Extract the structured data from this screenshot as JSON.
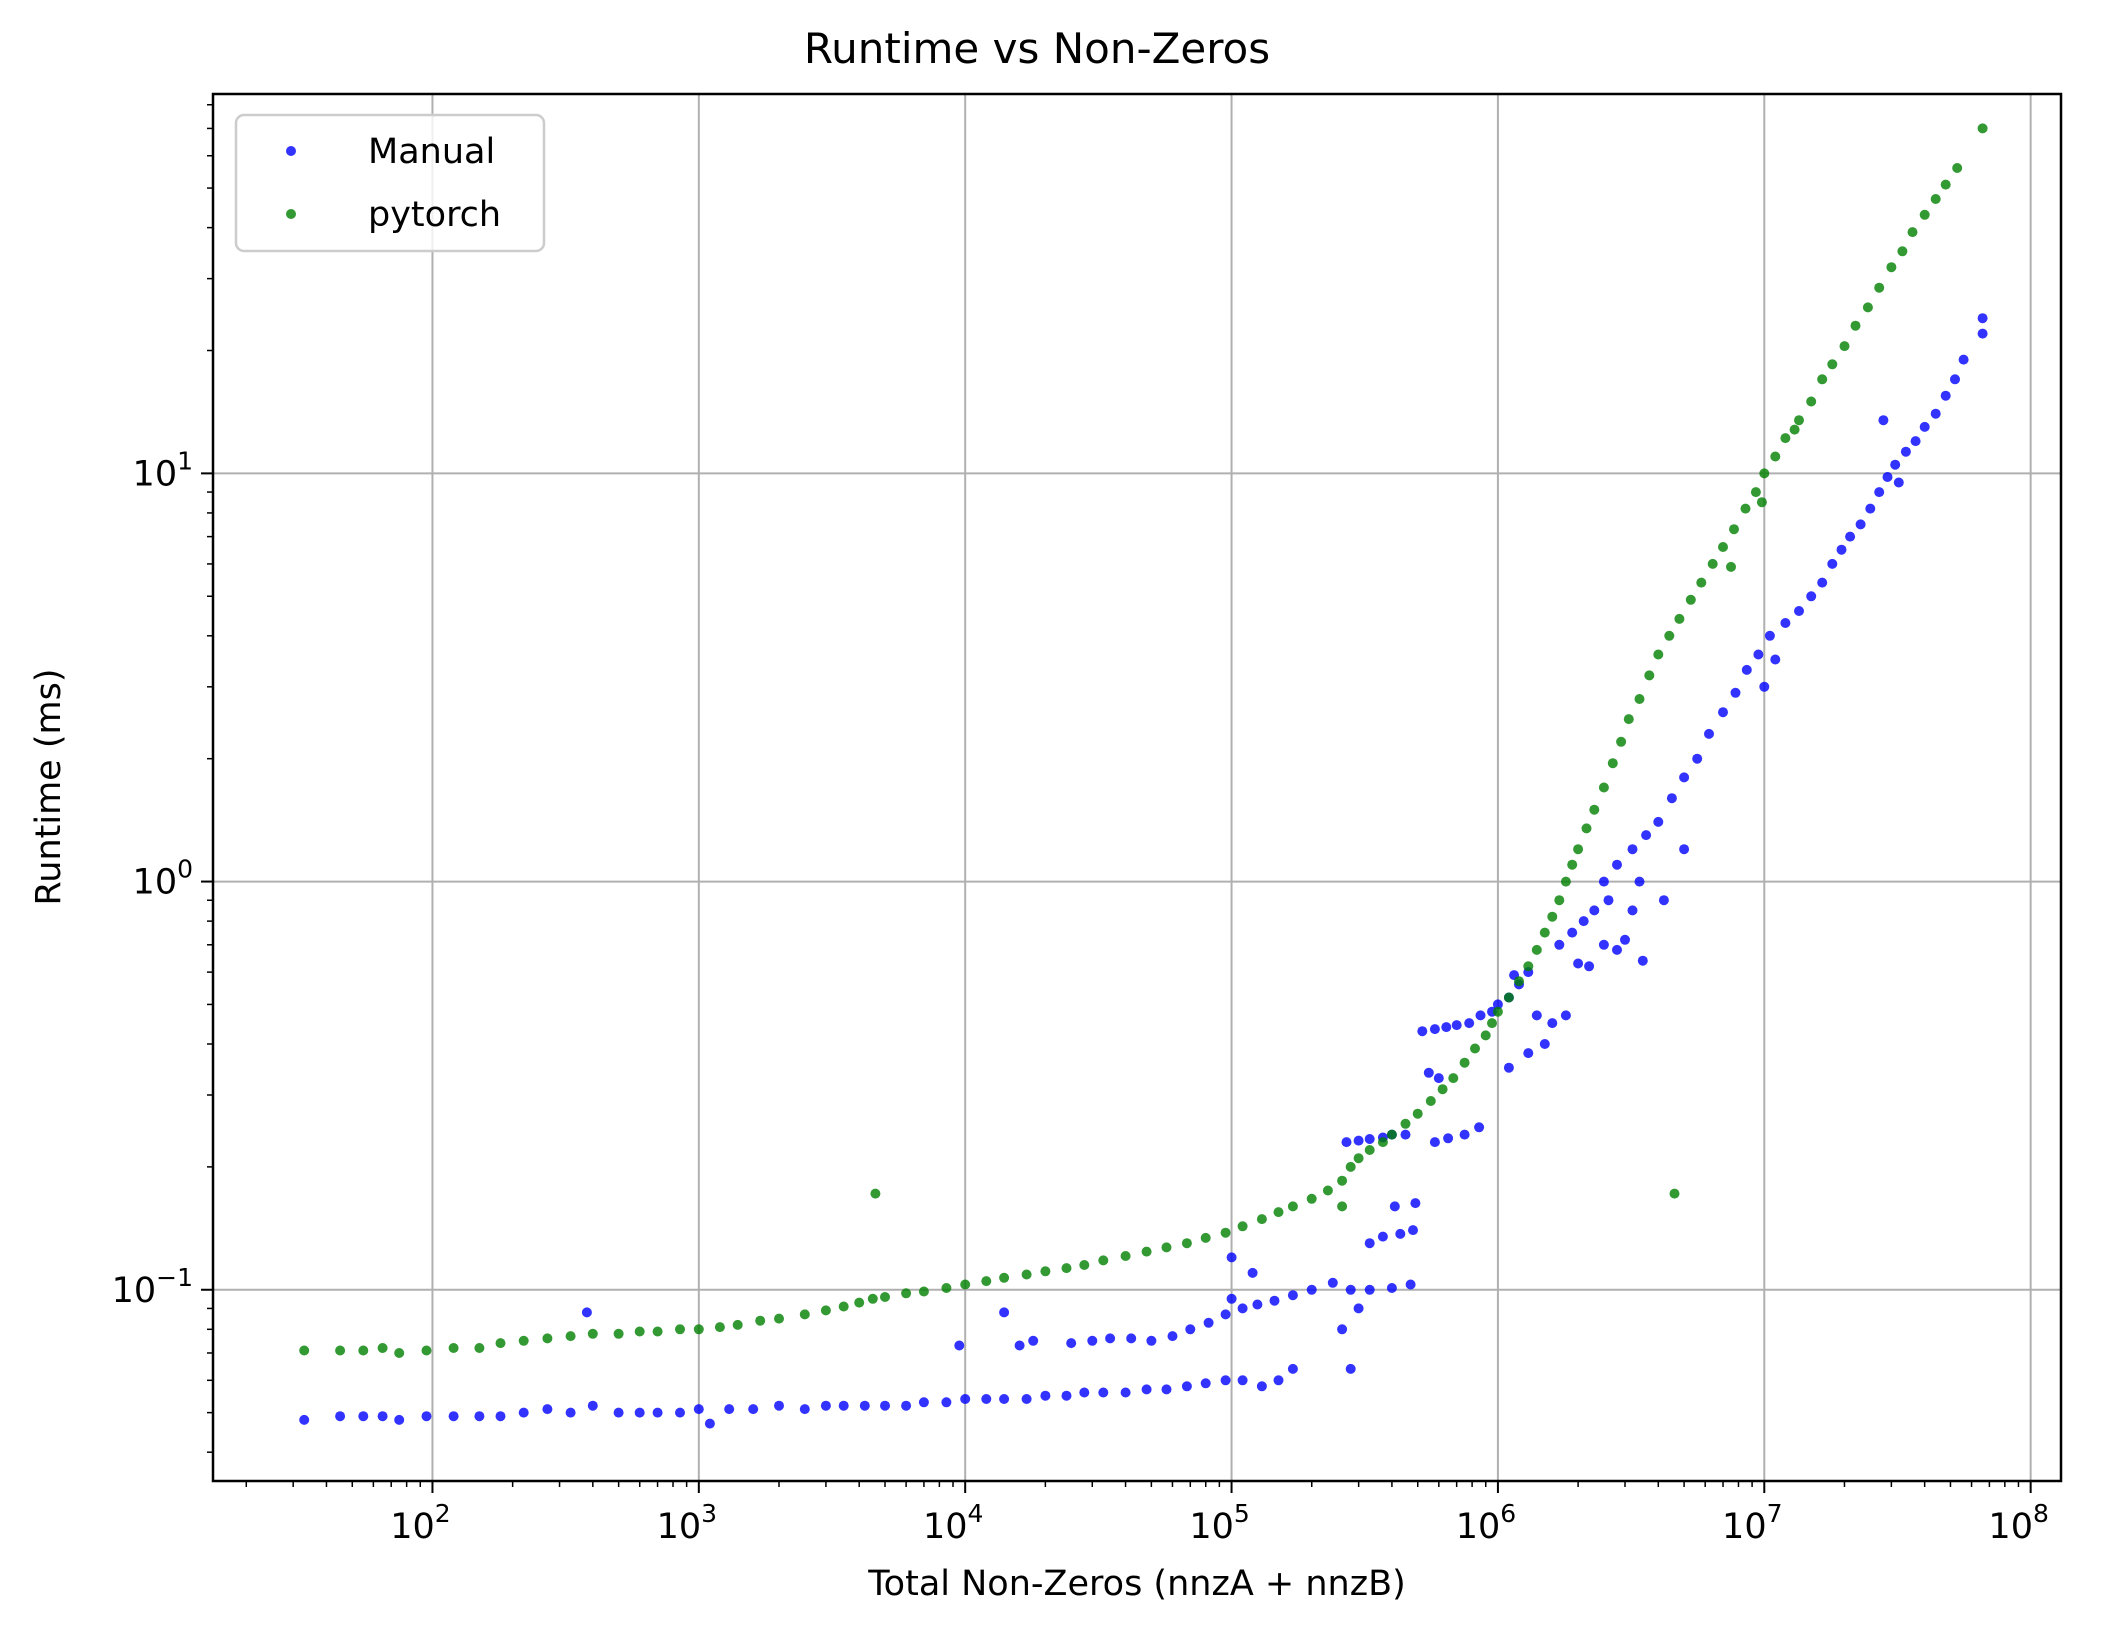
{
  "chart_data": {
    "type": "scatter",
    "title": "Runtime vs Non-Zeros",
    "xlabel": "Total Non-Zeros (nnzA + nnzB)",
    "ylabel": "Runtime (ms)",
    "xscale": "log",
    "yscale": "log",
    "xlim": [
      15,
      130000000
    ],
    "ylim": [
      0.034,
      85
    ],
    "grid": true,
    "legend_position": "upper-left",
    "x_ticks": [
      {
        "base": "10",
        "exp": "2",
        "value": 100
      },
      {
        "base": "10",
        "exp": "3",
        "value": 1000
      },
      {
        "base": "10",
        "exp": "4",
        "value": 10000
      },
      {
        "base": "10",
        "exp": "5",
        "value": 100000
      },
      {
        "base": "10",
        "exp": "6",
        "value": 1000000
      },
      {
        "base": "10",
        "exp": "7",
        "value": 10000000
      },
      {
        "base": "10",
        "exp": "8",
        "value": 100000000
      }
    ],
    "y_ticks": [
      {
        "base": "10",
        "exp": "−1",
        "value": 0.1
      },
      {
        "base": "10",
        "exp": "0",
        "value": 1
      },
      {
        "base": "10",
        "exp": "1",
        "value": 10
      }
    ],
    "series": [
      {
        "name": "Manual",
        "color": "#0000ff",
        "points": [
          [
            33,
            0.048
          ],
          [
            45,
            0.049
          ],
          [
            55,
            0.049
          ],
          [
            65,
            0.049
          ],
          [
            75,
            0.048
          ],
          [
            95,
            0.049
          ],
          [
            120,
            0.049
          ],
          [
            150,
            0.049
          ],
          [
            180,
            0.049
          ],
          [
            220,
            0.05
          ],
          [
            270,
            0.051
          ],
          [
            330,
            0.05
          ],
          [
            400,
            0.052
          ],
          [
            380,
            0.088
          ],
          [
            500,
            0.05
          ],
          [
            600,
            0.05
          ],
          [
            700,
            0.05
          ],
          [
            850,
            0.05
          ],
          [
            1000,
            0.051
          ],
          [
            1100,
            0.047
          ],
          [
            1300,
            0.051
          ],
          [
            1600,
            0.051
          ],
          [
            2000,
            0.052
          ],
          [
            2500,
            0.051
          ],
          [
            3000,
            0.052
          ],
          [
            3500,
            0.052
          ],
          [
            4200,
            0.052
          ],
          [
            5000,
            0.052
          ],
          [
            6000,
            0.052
          ],
          [
            7000,
            0.053
          ],
          [
            8500,
            0.053
          ],
          [
            10000,
            0.054
          ],
          [
            12000,
            0.054
          ],
          [
            14000,
            0.054
          ],
          [
            17000,
            0.054
          ],
          [
            20000,
            0.055
          ],
          [
            24000,
            0.055
          ],
          [
            28000,
            0.056
          ],
          [
            33000,
            0.056
          ],
          [
            40000,
            0.056
          ],
          [
            48000,
            0.057
          ],
          [
            57000,
            0.057
          ],
          [
            68000,
            0.058
          ],
          [
            80000,
            0.059
          ],
          [
            95000,
            0.06
          ],
          [
            110000,
            0.06
          ],
          [
            130000,
            0.058
          ],
          [
            150000,
            0.06
          ],
          [
            170000,
            0.064
          ],
          [
            9500,
            0.073
          ],
          [
            16000,
            0.073
          ],
          [
            18000,
            0.075
          ],
          [
            25000,
            0.074
          ],
          [
            30000,
            0.075
          ],
          [
            35000,
            0.076
          ],
          [
            42000,
            0.076
          ],
          [
            50000,
            0.075
          ],
          [
            60000,
            0.077
          ],
          [
            70000,
            0.08
          ],
          [
            82000,
            0.083
          ],
          [
            95000,
            0.087
          ],
          [
            100000,
            0.095
          ],
          [
            110000,
            0.09
          ],
          [
            125000,
            0.092
          ],
          [
            145000,
            0.094
          ],
          [
            170000,
            0.097
          ],
          [
            200000,
            0.1
          ],
          [
            240000,
            0.104
          ],
          [
            280000,
            0.1
          ],
          [
            330000,
            0.1
          ],
          [
            400000,
            0.101
          ],
          [
            470000,
            0.103
          ],
          [
            14000,
            0.088
          ],
          [
            100000,
            0.12
          ],
          [
            120000,
            0.11
          ],
          [
            280000,
            0.064
          ],
          [
            260000,
            0.08
          ],
          [
            300000,
            0.09
          ],
          [
            330000,
            0.13
          ],
          [
            370000,
            0.135
          ],
          [
            430000,
            0.137
          ],
          [
            480000,
            0.14
          ],
          [
            410000,
            0.16
          ],
          [
            490000,
            0.163
          ],
          [
            270000,
            0.23
          ],
          [
            300000,
            0.232
          ],
          [
            330000,
            0.234
          ],
          [
            370000,
            0.236
          ],
          [
            400000,
            0.24
          ],
          [
            450000,
            0.24
          ],
          [
            580000,
            0.23
          ],
          [
            650000,
            0.235
          ],
          [
            750000,
            0.24
          ],
          [
            850000,
            0.25
          ],
          [
            550000,
            0.34
          ],
          [
            600000,
            0.33
          ],
          [
            520000,
            0.43
          ],
          [
            580000,
            0.435
          ],
          [
            640000,
            0.44
          ],
          [
            700000,
            0.445
          ],
          [
            780000,
            0.45
          ],
          [
            860000,
            0.47
          ],
          [
            950000,
            0.48
          ],
          [
            1000000,
            0.5
          ],
          [
            1100000,
            0.52
          ],
          [
            1150000,
            0.59
          ],
          [
            1200000,
            0.56
          ],
          [
            1300000,
            0.6
          ],
          [
            1400000,
            0.47
          ],
          [
            1600000,
            0.45
          ],
          [
            1800000,
            0.47
          ],
          [
            1100000,
            0.35
          ],
          [
            1300000,
            0.38
          ],
          [
            1500000,
            0.4
          ],
          [
            1700000,
            0.7
          ],
          [
            1900000,
            0.75
          ],
          [
            2100000,
            0.8
          ],
          [
            2300000,
            0.85
          ],
          [
            2600000,
            0.9
          ],
          [
            2000000,
            0.63
          ],
          [
            2200000,
            0.62
          ],
          [
            2500000,
            0.7
          ],
          [
            2800000,
            0.68
          ],
          [
            3200000,
            0.85
          ],
          [
            3000000,
            0.72
          ],
          [
            3500000,
            0.64
          ],
          [
            2500000,
            1.0
          ],
          [
            2800000,
            1.1
          ],
          [
            3200000,
            1.2
          ],
          [
            3600000,
            1.3
          ],
          [
            4000000,
            1.4
          ],
          [
            4500000,
            1.6
          ],
          [
            5000000,
            1.8
          ],
          [
            5600000,
            2.0
          ],
          [
            6200000,
            2.3
          ],
          [
            7000000,
            2.6
          ],
          [
            7800000,
            2.9
          ],
          [
            8600000,
            3.3
          ],
          [
            9500000,
            3.6
          ],
          [
            10000000,
            3.0
          ],
          [
            10500000,
            4.0
          ],
          [
            11000000,
            3.5
          ],
          [
            12000000,
            4.3
          ],
          [
            13500000,
            4.6
          ],
          [
            15000000,
            5.0
          ],
          [
            16500000,
            5.4
          ],
          [
            18000000,
            6.0
          ],
          [
            19500000,
            6.5
          ],
          [
            21000000,
            7.0
          ],
          [
            23000000,
            7.5
          ],
          [
            25000000,
            8.2
          ],
          [
            27000000,
            9.0
          ],
          [
            29000000,
            9.8
          ],
          [
            31000000,
            10.5
          ],
          [
            34000000,
            11.3
          ],
          [
            37000000,
            12.0
          ],
          [
            40000000,
            13.0
          ],
          [
            44000000,
            14.0
          ],
          [
            48000000,
            15.5
          ],
          [
            52000000,
            17.0
          ],
          [
            56000000,
            19.0
          ],
          [
            66000000,
            22.0
          ],
          [
            66000000,
            24.0
          ],
          [
            28000000,
            13.5
          ],
          [
            32000000,
            9.5
          ],
          [
            5000000,
            1.2
          ],
          [
            4200000,
            0.9
          ],
          [
            3400000,
            1.0
          ]
        ]
      },
      {
        "name": "pytorch",
        "color": "#008000",
        "points": [
          [
            33,
            0.071
          ],
          [
            45,
            0.071
          ],
          [
            55,
            0.071
          ],
          [
            65,
            0.072
          ],
          [
            75,
            0.07
          ],
          [
            95,
            0.071
          ],
          [
            120,
            0.072
          ],
          [
            150,
            0.072
          ],
          [
            180,
            0.074
          ],
          [
            220,
            0.075
          ],
          [
            270,
            0.076
          ],
          [
            330,
            0.077
          ],
          [
            400,
            0.078
          ],
          [
            500,
            0.078
          ],
          [
            600,
            0.079
          ],
          [
            700,
            0.079
          ],
          [
            850,
            0.08
          ],
          [
            1000,
            0.08
          ],
          [
            1200,
            0.081
          ],
          [
            1400,
            0.082
          ],
          [
            1700,
            0.084
          ],
          [
            2000,
            0.085
          ],
          [
            2500,
            0.087
          ],
          [
            3000,
            0.089
          ],
          [
            3500,
            0.091
          ],
          [
            4000,
            0.093
          ],
          [
            4500,
            0.095
          ],
          [
            4600,
            0.172
          ],
          [
            5000,
            0.096
          ],
          [
            6000,
            0.098
          ],
          [
            7000,
            0.099
          ],
          [
            8500,
            0.101
          ],
          [
            10000,
            0.103
          ],
          [
            12000,
            0.105
          ],
          [
            14000,
            0.107
          ],
          [
            17000,
            0.109
          ],
          [
            20000,
            0.111
          ],
          [
            24000,
            0.113
          ],
          [
            28000,
            0.115
          ],
          [
            33000,
            0.118
          ],
          [
            40000,
            0.121
          ],
          [
            48000,
            0.124
          ],
          [
            57000,
            0.127
          ],
          [
            68000,
            0.13
          ],
          [
            80000,
            0.134
          ],
          [
            95000,
            0.138
          ],
          [
            110000,
            0.143
          ],
          [
            130000,
            0.149
          ],
          [
            150000,
            0.155
          ],
          [
            170000,
            0.16
          ],
          [
            200000,
            0.167
          ],
          [
            230000,
            0.175
          ],
          [
            260000,
            0.185
          ],
          [
            280000,
            0.2
          ],
          [
            300000,
            0.21
          ],
          [
            330000,
            0.22
          ],
          [
            370000,
            0.23
          ],
          [
            400000,
            0.24
          ],
          [
            450000,
            0.255
          ],
          [
            500000,
            0.27
          ],
          [
            560000,
            0.29
          ],
          [
            620000,
            0.31
          ],
          [
            680000,
            0.33
          ],
          [
            750000,
            0.36
          ],
          [
            820000,
            0.39
          ],
          [
            900000,
            0.42
          ],
          [
            950000,
            0.45
          ],
          [
            1000000,
            0.48
          ],
          [
            1100000,
            0.52
          ],
          [
            1200000,
            0.57
          ],
          [
            1300000,
            0.62
          ],
          [
            1400000,
            0.68
          ],
          [
            1500000,
            0.75
          ],
          [
            1600000,
            0.82
          ],
          [
            1700000,
            0.9
          ],
          [
            1800000,
            1.0
          ],
          [
            1900000,
            1.1
          ],
          [
            2000000,
            1.2
          ],
          [
            2150000,
            1.35
          ],
          [
            2300000,
            1.5
          ],
          [
            2500000,
            1.7
          ],
          [
            2700000,
            1.95
          ],
          [
            2900000,
            2.2
          ],
          [
            3100000,
            2.5
          ],
          [
            3400000,
            2.8
          ],
          [
            3700000,
            3.2
          ],
          [
            4000000,
            3.6
          ],
          [
            4400000,
            4.0
          ],
          [
            4800000,
            4.4
          ],
          [
            5300000,
            4.9
          ],
          [
            5800000,
            5.4
          ],
          [
            6400000,
            6.0
          ],
          [
            7000000,
            6.6
          ],
          [
            7700000,
            7.3
          ],
          [
            8500000,
            8.2
          ],
          [
            9300000,
            9.0
          ],
          [
            10000000,
            10.0
          ],
          [
            11000000,
            11.0
          ],
          [
            12000000,
            12.2
          ],
          [
            13500000,
            13.5
          ],
          [
            15000000,
            15.0
          ],
          [
            16500000,
            17.0
          ],
          [
            18000000,
            18.5
          ],
          [
            20000000,
            20.5
          ],
          [
            22000000,
            23.0
          ],
          [
            24500000,
            25.5
          ],
          [
            27000000,
            28.5
          ],
          [
            30000000,
            32.0
          ],
          [
            33000000,
            35.0
          ],
          [
            36000000,
            39.0
          ],
          [
            40000000,
            43.0
          ],
          [
            44000000,
            47.0
          ],
          [
            48000000,
            51.0
          ],
          [
            53000000,
            56.0
          ],
          [
            66000000,
            70.0
          ],
          [
            7500000,
            5.9
          ],
          [
            9800000,
            8.5
          ],
          [
            13000000,
            12.8
          ],
          [
            4600000,
            0.172
          ],
          [
            260000,
            0.16
          ]
        ]
      }
    ]
  }
}
